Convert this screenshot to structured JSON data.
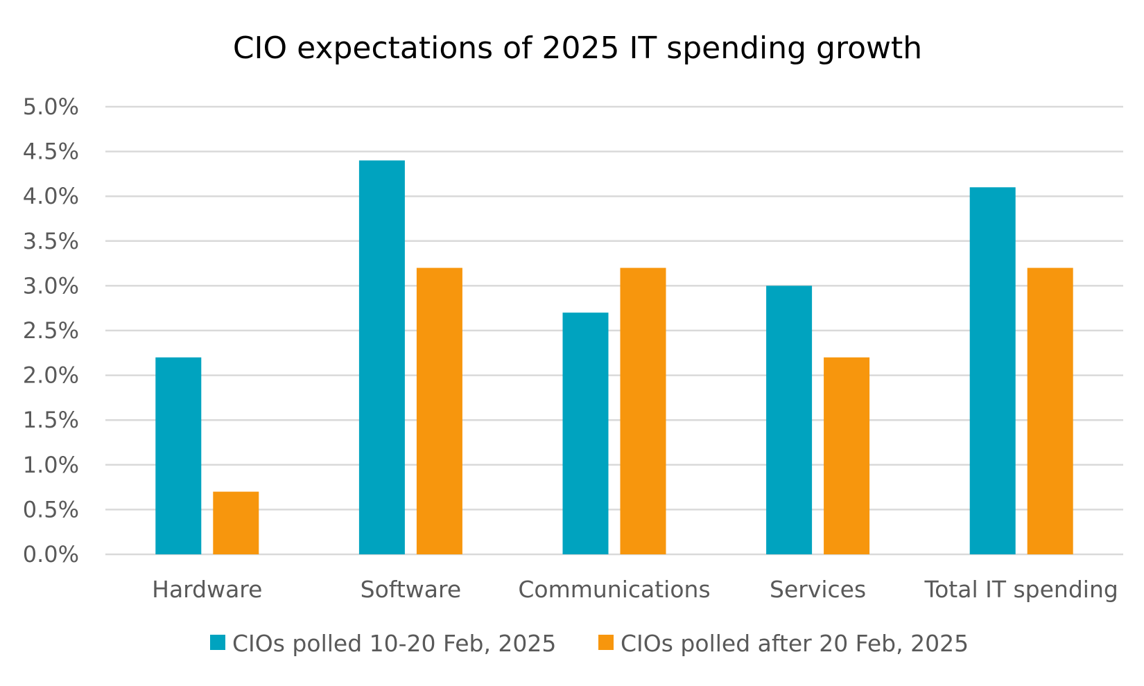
{
  "chart_data": {
    "type": "bar",
    "title": "CIO expectations of 2025 IT spending growth",
    "xlabel": "",
    "ylabel": "",
    "categories": [
      "Hardware",
      "Software",
      "Communications",
      "Services",
      "Total IT spending"
    ],
    "series": [
      {
        "name": "CIOs polled 10-20 Feb, 2025",
        "color": "#00a3bf",
        "values": [
          2.2,
          4.4,
          2.7,
          3.0,
          4.1
        ]
      },
      {
        "name": "CIOs polled after 20 Feb, 2025",
        "color": "#f7960d",
        "values": [
          0.7,
          3.2,
          3.2,
          2.2,
          3.2
        ]
      }
    ],
    "ylim": [
      0,
      5.0
    ],
    "yticks": [
      "0.0%",
      "0.5%",
      "1.0%",
      "1.5%",
      "2.0%",
      "2.5%",
      "3.0%",
      "3.5%",
      "4.0%",
      "4.5%",
      "5.0%"
    ],
    "grid": true,
    "legend_position": "bottom"
  }
}
